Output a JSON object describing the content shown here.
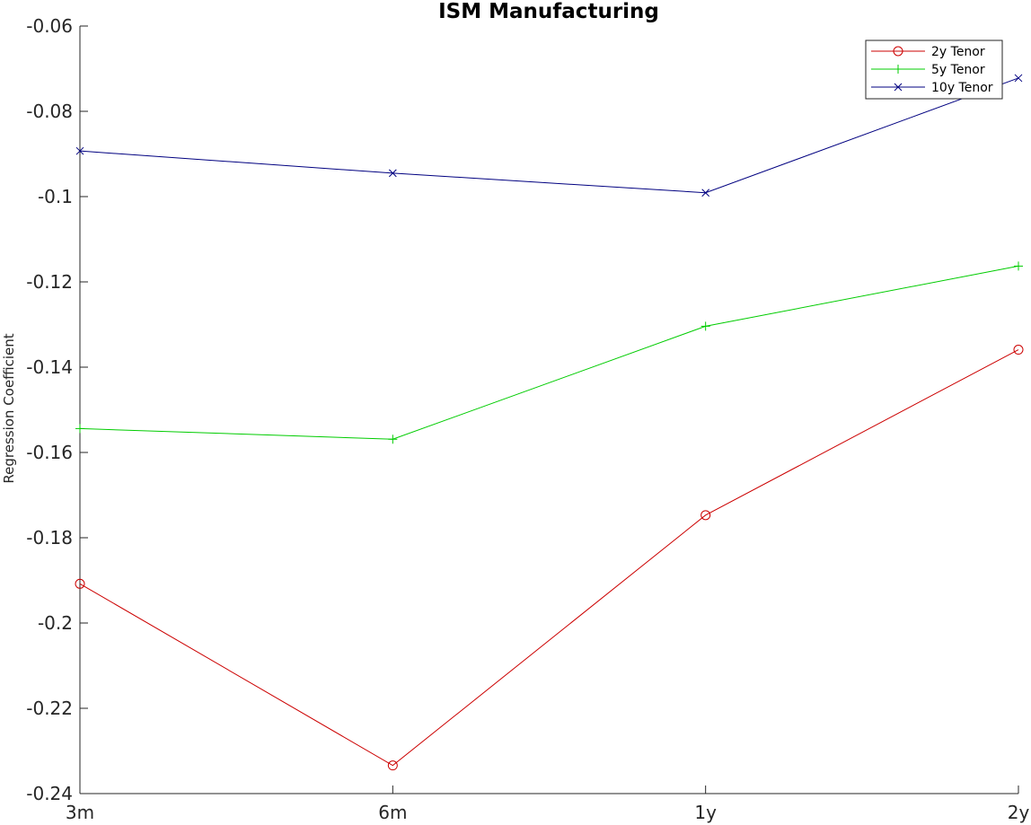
{
  "chart_data": {
    "type": "line",
    "title": "ISM Manufacturing",
    "xlabel": "",
    "ylabel": "Regression Coefficient",
    "categories": [
      "3m",
      "6m",
      "1y",
      "2y"
    ],
    "ylim": [
      -0.24,
      -0.06
    ],
    "yticks": [
      -0.06,
      -0.08,
      -0.1,
      -0.12,
      -0.14,
      -0.16,
      -0.18,
      -0.2,
      -0.22,
      -0.24
    ],
    "ytick_labels": [
      "-0.06",
      "-0.08",
      "-0.1",
      "-0.12",
      "-0.14",
      "-0.16",
      "-0.18",
      "-0.2",
      "-0.22",
      "-0.24"
    ],
    "grid": false,
    "legend_position": "top-right",
    "series": [
      {
        "name": "2y Tenor",
        "values": [
          -0.1908,
          -0.2334,
          -0.1747,
          -0.1359
        ],
        "color": "#cc0000",
        "marker": "circle"
      },
      {
        "name": "5y Tenor",
        "values": [
          -0.1544,
          -0.1569,
          -0.1304,
          -0.1163
        ],
        "color": "#00cc00",
        "marker": "plus"
      },
      {
        "name": "10y Tenor",
        "values": [
          -0.0893,
          -0.0945,
          -0.0991,
          -0.0722
        ],
        "color": "#000080",
        "marker": "x"
      }
    ]
  }
}
